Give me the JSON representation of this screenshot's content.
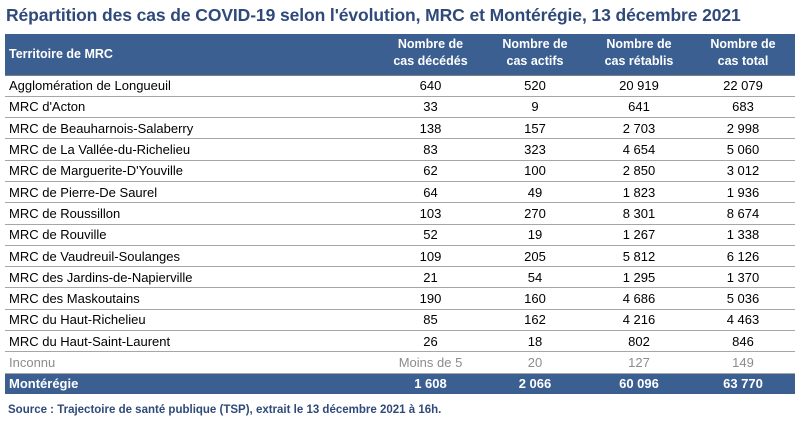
{
  "title": "Répartition des cas de COVID-19 selon l'évolution, MRC et Montérégie, 13 décembre 2021",
  "headers": {
    "territory": "Territoire de MRC",
    "deaths": [
      "Nombre de",
      "cas décédés"
    ],
    "active": [
      "Nombre de",
      "cas actifs"
    ],
    "recovered": [
      "Nombre de",
      "cas rétablis"
    ],
    "total": [
      "Nombre de",
      "cas total"
    ]
  },
  "rows": [
    {
      "name": "Agglomération de Longueuil",
      "deaths": "640",
      "active": "520",
      "recovered": "20 919",
      "total": "22 079"
    },
    {
      "name": "MRC d'Acton",
      "deaths": "33",
      "active": "9",
      "recovered": "641",
      "total": "683"
    },
    {
      "name": "MRC de Beauharnois-Salaberry",
      "deaths": "138",
      "active": "157",
      "recovered": "2 703",
      "total": "2 998"
    },
    {
      "name": "MRC de La Vallée-du-Richelieu",
      "deaths": "83",
      "active": "323",
      "recovered": "4 654",
      "total": "5 060"
    },
    {
      "name": "MRC de Marguerite-D'Youville",
      "deaths": "62",
      "active": "100",
      "recovered": "2 850",
      "total": "3 012"
    },
    {
      "name": "MRC de Pierre-De Saurel",
      "deaths": "64",
      "active": "49",
      "recovered": "1 823",
      "total": "1 936"
    },
    {
      "name": "MRC de Roussillon",
      "deaths": "103",
      "active": "270",
      "recovered": "8 301",
      "total": "8 674"
    },
    {
      "name": "MRC de Rouville",
      "deaths": "52",
      "active": "19",
      "recovered": "1 267",
      "total": "1 338"
    },
    {
      "name": "MRC de Vaudreuil-Soulanges",
      "deaths": "109",
      "active": "205",
      "recovered": "5 812",
      "total": "6 126"
    },
    {
      "name": "MRC des Jardins-de-Napierville",
      "deaths": "21",
      "active": "54",
      "recovered": "1 295",
      "total": "1 370"
    },
    {
      "name": "MRC des Maskoutains",
      "deaths": "190",
      "active": "160",
      "recovered": "4 686",
      "total": "5 036"
    },
    {
      "name": "MRC du Haut-Richelieu",
      "deaths": "85",
      "active": "162",
      "recovered": "4 216",
      "total": "4 463"
    },
    {
      "name": "MRC du Haut-Saint-Laurent",
      "deaths": "26",
      "active": "18",
      "recovered": "802",
      "total": "846"
    },
    {
      "name": "Inconnu",
      "deaths": "Moins de 5",
      "active": "20",
      "recovered": "127",
      "total": "149",
      "muted": true
    }
  ],
  "total_row": {
    "name": "Montérégie",
    "deaths": "1 608",
    "active": "2 066",
    "recovered": "60 096",
    "total": "63 770"
  },
  "source": "Source : Trajectoire de santé publique (TSP), extrait le 13 décembre 2021 à 16h.",
  "colors": {
    "header_bg": "#3c5f92",
    "title": "#2f4a7a",
    "muted_text": "#8c8c8c"
  }
}
